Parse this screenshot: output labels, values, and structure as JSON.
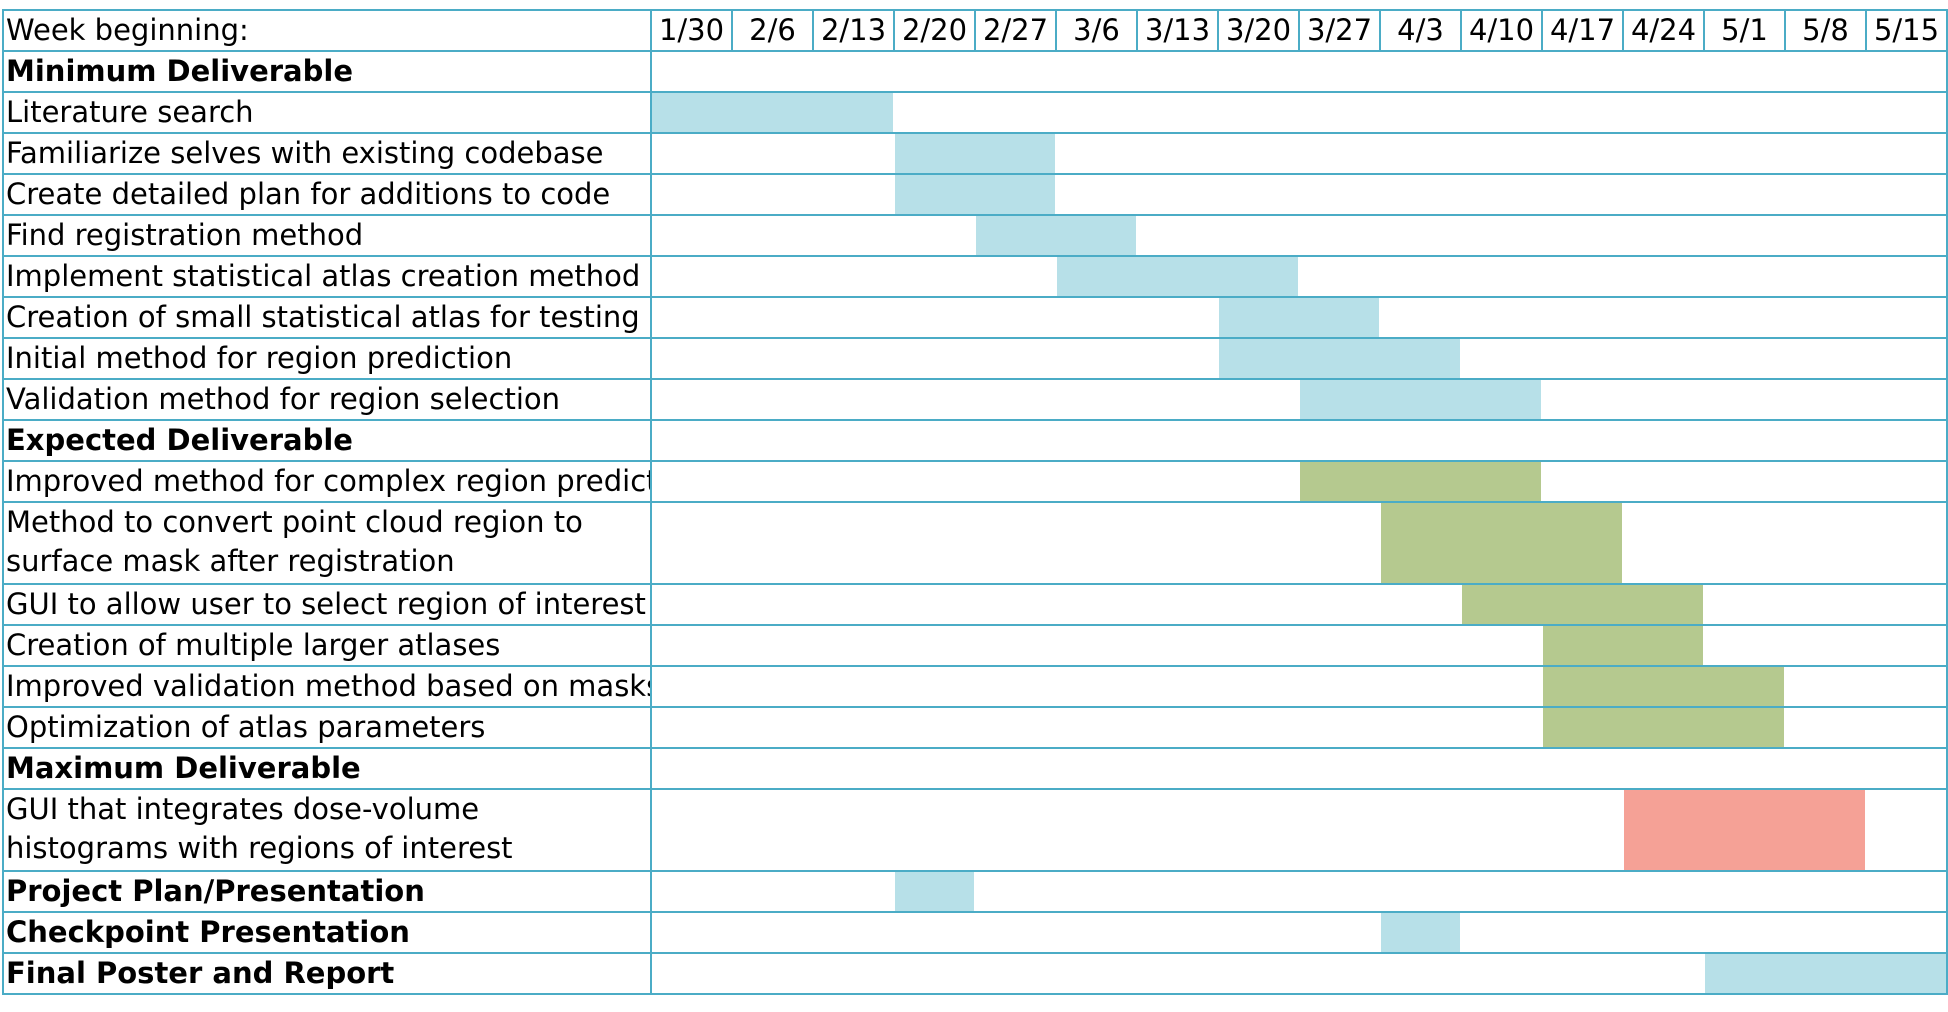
{
  "colors": {
    "grid": "#4bacc6",
    "minimum": "#b7e0e8",
    "expected": "#b5c98f",
    "maximum": "#f5a196"
  },
  "header": {
    "label": "Week beginning:",
    "weeks": [
      "1/30",
      "2/6",
      "2/13",
      "2/20",
      "2/27",
      "3/6",
      "3/13",
      "3/20",
      "3/27",
      "4/3",
      "4/10",
      "4/17",
      "4/24",
      "5/1",
      "5/8",
      "5/15"
    ]
  },
  "chart_data": {
    "type": "gantt",
    "x_categories": [
      "1/30",
      "2/6",
      "2/13",
      "2/20",
      "2/27",
      "3/6",
      "3/13",
      "3/20",
      "3/27",
      "4/3",
      "4/10",
      "4/17",
      "4/24",
      "5/1",
      "5/8",
      "5/15"
    ],
    "rows": [
      {
        "label": "Minimum Deliverable",
        "kind": "section"
      },
      {
        "label": "Literature search",
        "kind": "task",
        "start": "1/30",
        "end": "2/13",
        "color": "minimum"
      },
      {
        "label": "Familiarize selves with existing codebase",
        "kind": "task",
        "start": "2/20",
        "end": "2/27",
        "color": "minimum"
      },
      {
        "label": "Create detailed plan for additions to code",
        "kind": "task",
        "start": "2/20",
        "end": "2/27",
        "color": "minimum"
      },
      {
        "label": "Find registration method",
        "kind": "task",
        "start": "2/27",
        "end": "3/6",
        "color": "minimum"
      },
      {
        "label": "Implement statistical atlas creation method",
        "kind": "task",
        "start": "3/6",
        "end": "3/20",
        "color": "minimum"
      },
      {
        "label": "Creation of small statistical atlas for testing",
        "kind": "task",
        "start": "3/20",
        "end": "3/27",
        "color": "minimum"
      },
      {
        "label": "Initial method for region prediction",
        "kind": "task",
        "start": "3/20",
        "end": "4/3",
        "color": "minimum"
      },
      {
        "label": "Validation method for region selection",
        "kind": "task",
        "start": "3/27",
        "end": "4/10",
        "color": "minimum"
      },
      {
        "label": "Expected Deliverable",
        "kind": "section"
      },
      {
        "label": "Improved method for complex region prediction",
        "kind": "task",
        "start": "3/27",
        "end": "4/10",
        "color": "expected"
      },
      {
        "label": "Method to convert point cloud region to surface mask after registration",
        "kind": "task",
        "start": "4/3",
        "end": "4/17",
        "color": "expected",
        "tall": true
      },
      {
        "label": "GUI to allow user to select region of interest",
        "kind": "task",
        "start": "4/10",
        "end": "4/24",
        "color": "expected"
      },
      {
        "label": "Creation of multiple larger atlases",
        "kind": "task",
        "start": "4/17",
        "end": "4/24",
        "color": "expected"
      },
      {
        "label": "Improved validation method based on masks",
        "kind": "task",
        "start": "4/17",
        "end": "5/1",
        "color": "expected"
      },
      {
        "label": "Optimization of atlas parameters",
        "kind": "task",
        "start": "4/17",
        "end": "5/1",
        "color": "expected"
      },
      {
        "label": "Maximum Deliverable",
        "kind": "section"
      },
      {
        "label": "GUI that integrates dose-volume histograms with regions of interest",
        "kind": "task",
        "start": "4/24",
        "end": "5/8",
        "color": "maximum",
        "tall": true
      },
      {
        "label": "Project Plan/Presentation",
        "kind": "milestone",
        "start": "2/20",
        "end": "2/20",
        "color": "minimum"
      },
      {
        "label": "Checkpoint Presentation",
        "kind": "milestone",
        "start": "4/3",
        "end": "4/3",
        "color": "minimum"
      },
      {
        "label": "Final Poster and Report",
        "kind": "milestone",
        "start": "5/1",
        "end": "5/15",
        "color": "minimum"
      }
    ]
  }
}
